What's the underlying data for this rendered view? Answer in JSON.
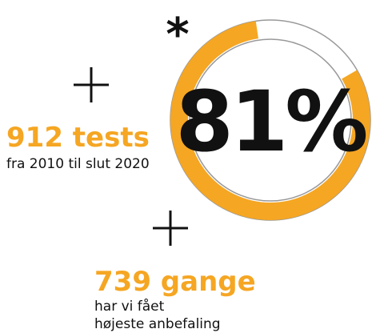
{
  "asterisk": "*",
  "ring": {
    "value": 81,
    "label": "81%",
    "color": "#f5a623"
  },
  "stats": [
    {
      "value": "912 tests",
      "caption": [
        "fra 2010 til slut 2020"
      ]
    },
    {
      "value": "739 gange",
      "caption": [
        "har vi fået",
        "højeste anbefaling"
      ]
    }
  ]
}
